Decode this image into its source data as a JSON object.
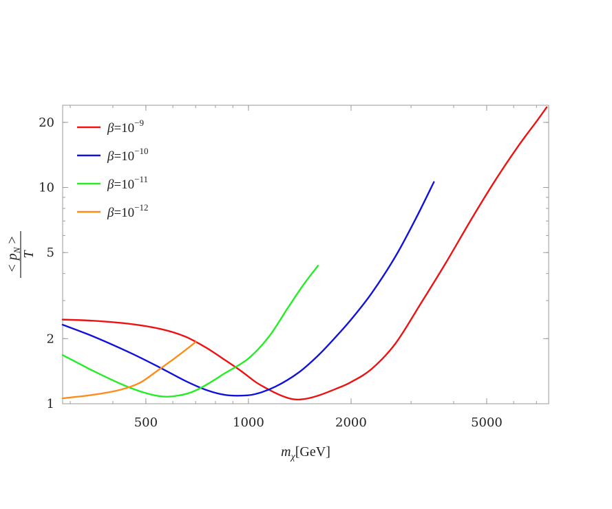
{
  "chart_data": {
    "type": "line",
    "title": "",
    "xlabel": {
      "main": "m",
      "sub": "χ",
      "unit": "[GeV]"
    },
    "ylabel": {
      "numerator": "< p",
      "numerator_sub": "N",
      "numerator_tail": " >",
      "denominator": "T"
    },
    "x_scale": "log",
    "y_scale": "log",
    "xlim": [
      285,
      7600
    ],
    "ylim": [
      1,
      24
    ],
    "x_ticks": [
      {
        "value": 500,
        "label": "500"
      },
      {
        "value": 1000,
        "label": "1000"
      },
      {
        "value": 2000,
        "label": "2000"
      },
      {
        "value": 5000,
        "label": "5000"
      }
    ],
    "y_ticks": [
      {
        "value": 1,
        "label": "1"
      },
      {
        "value": 2,
        "label": "2"
      },
      {
        "value": 5,
        "label": "5"
      },
      {
        "value": 10,
        "label": "10"
      },
      {
        "value": 20,
        "label": "20"
      }
    ],
    "legend_position": "top-left",
    "grid": false,
    "series": [
      {
        "name": "β=10⁻⁹",
        "legend": {
          "base": "β=10",
          "exp": "−9"
        },
        "color": "#ee1111",
        "x": [
          285,
          350,
          450,
          550,
          650,
          750,
          850,
          950,
          1050,
          1150,
          1250,
          1350,
          1450,
          1600,
          1800,
          2000,
          2300,
          2700,
          3200,
          3800,
          4500,
          5300,
          6200,
          7000,
          7500
        ],
        "y": [
          2.45,
          2.42,
          2.34,
          2.22,
          2.05,
          1.82,
          1.6,
          1.42,
          1.26,
          1.16,
          1.09,
          1.05,
          1.05,
          1.09,
          1.17,
          1.26,
          1.45,
          1.9,
          2.9,
          4.5,
          7.1,
          10.8,
          15.6,
          20.2,
          23.5
        ]
      },
      {
        "name": "β=10⁻¹⁰",
        "legend": {
          "base": "β=10",
          "exp": "−10"
        },
        "color": "#1111dd",
        "x": [
          285,
          350,
          450,
          550,
          650,
          750,
          850,
          950,
          1050,
          1200,
          1400,
          1600,
          1800,
          2000,
          2300,
          2700,
          3100,
          3500
        ],
        "y": [
          2.32,
          2.05,
          1.72,
          1.47,
          1.28,
          1.16,
          1.1,
          1.09,
          1.11,
          1.2,
          1.39,
          1.67,
          2.03,
          2.45,
          3.25,
          4.8,
          7.2,
          10.6
        ]
      },
      {
        "name": "β=10⁻¹¹",
        "legend": {
          "base": "β=10",
          "exp": "−11"
        },
        "color": "#22ee22",
        "x": [
          285,
          350,
          430,
          500,
          560,
          620,
          680,
          750,
          850,
          1000,
          1150,
          1300,
          1450,
          1600
        ],
        "y": [
          1.68,
          1.42,
          1.22,
          1.12,
          1.08,
          1.09,
          1.13,
          1.22,
          1.38,
          1.62,
          2.05,
          2.75,
          3.55,
          4.35
        ]
      },
      {
        "name": "β=10⁻¹²",
        "legend": {
          "base": "β=10",
          "exp": "−12"
        },
        "color": "#ff8c1a",
        "x": [
          285,
          350,
          420,
          480,
          540,
          600,
          650,
          700
        ],
        "y": [
          1.06,
          1.1,
          1.16,
          1.25,
          1.42,
          1.6,
          1.76,
          1.93
        ]
      }
    ]
  }
}
